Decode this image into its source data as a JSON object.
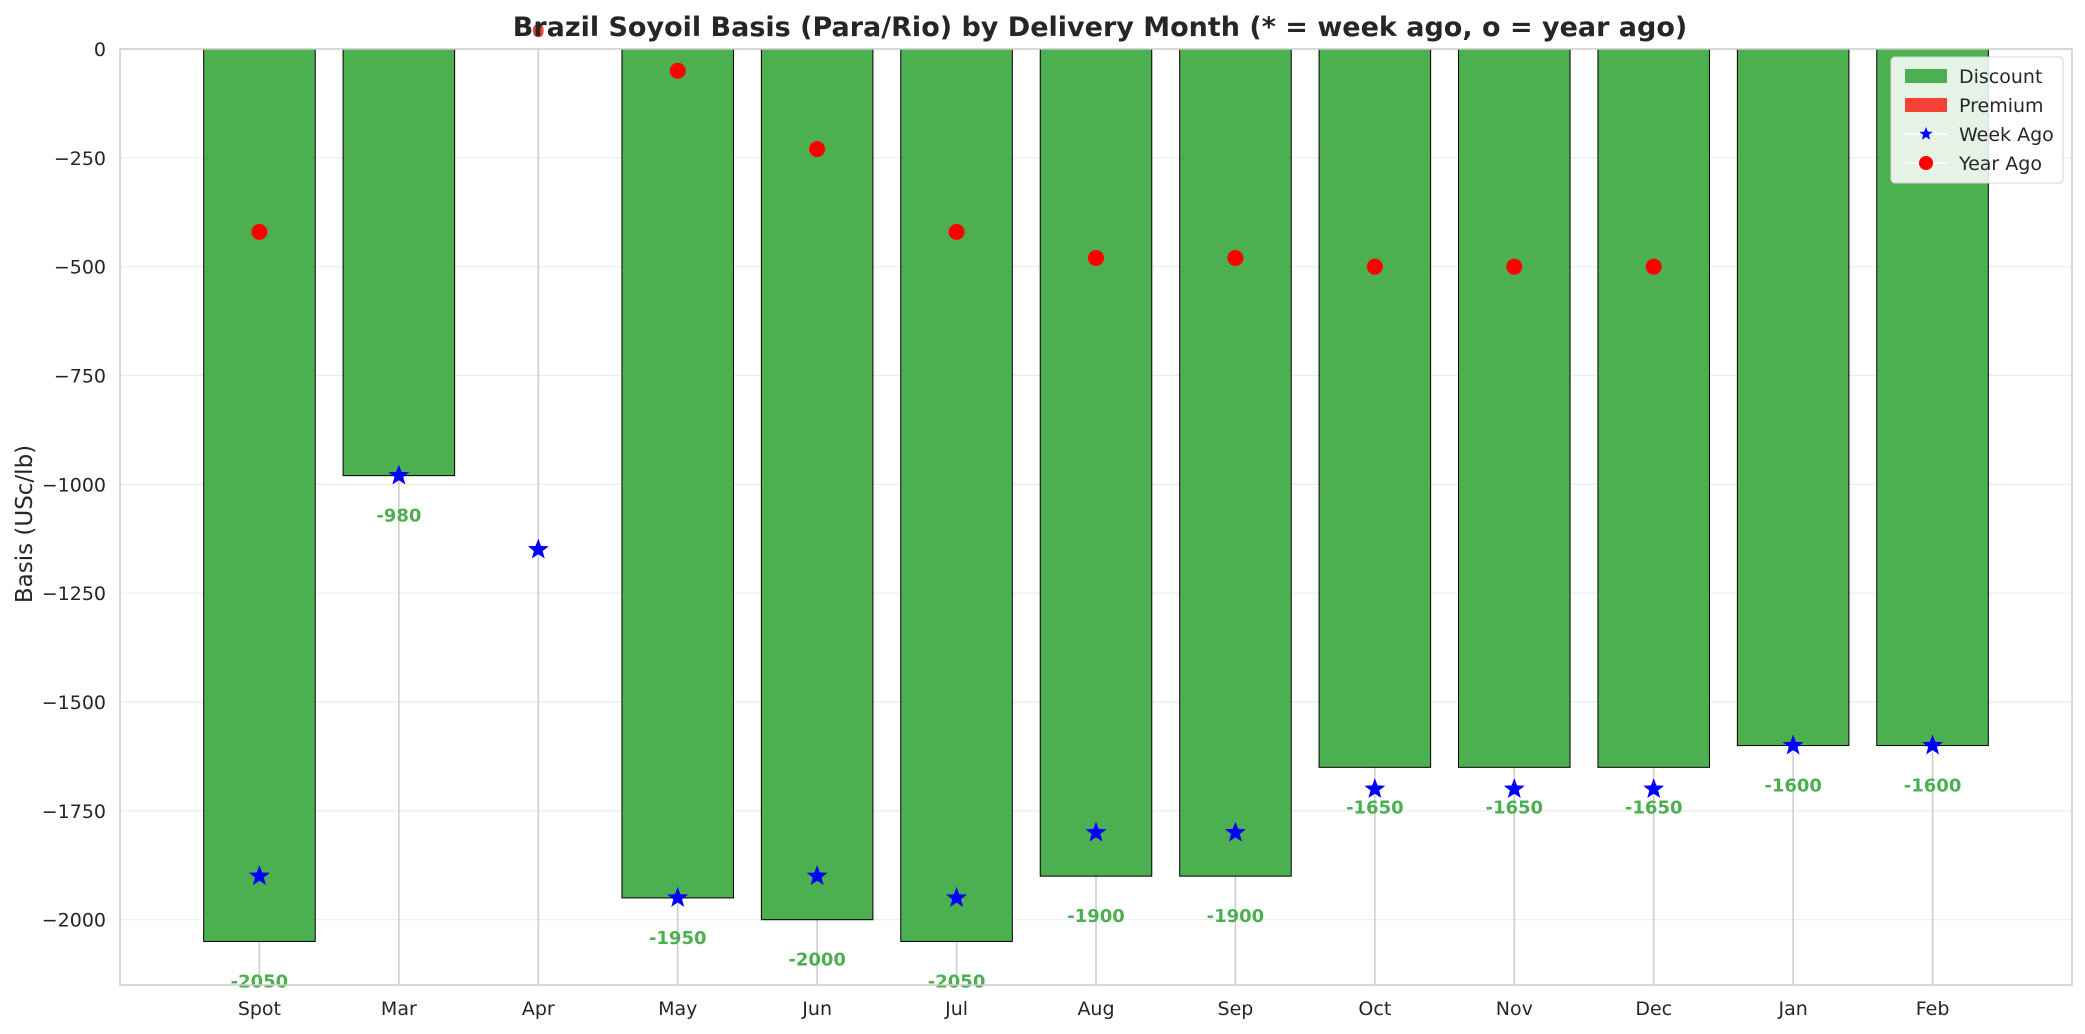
{
  "chart_data": {
    "type": "bar",
    "title": "Brazil Soyoil Basis (Para/Rio) by Delivery Month (* = week ago, o = year ago)",
    "xlabel": "",
    "ylabel": "Basis (USc/lb)",
    "categories": [
      "Spot",
      "Mar",
      "Apr",
      "May",
      "Jun",
      "Jul",
      "Aug",
      "Sep",
      "Oct",
      "Nov",
      "Dec",
      "Jan",
      "Feb"
    ],
    "series": [
      {
        "name": "Discount",
        "values": [
          -2050,
          -980,
          0,
          -1950,
          -2000,
          -2050,
          -1900,
          -1900,
          -1650,
          -1650,
          -1650,
          -1600,
          -1600
        ]
      },
      {
        "name": "Week Ago",
        "values": [
          -1900,
          -980,
          -1150,
          -1950,
          -1900,
          -1950,
          -1800,
          -1800,
          -1700,
          -1700,
          -1700,
          -1600,
          -1600
        ]
      },
      {
        "name": "Year Ago",
        "values": [
          -420,
          null,
          null,
          -50,
          -230,
          -420,
          -480,
          -480,
          -500,
          -500,
          -500,
          null,
          null
        ]
      }
    ],
    "data_labels": [
      "-2050",
      "-980",
      "0",
      "-1950",
      "-2000",
      "-2050",
      "-1900",
      "-1900",
      "-1650",
      "-1650",
      "-1650",
      "-1600",
      "-1600"
    ],
    "yticks": [
      0,
      -250,
      -500,
      -750,
      -1000,
      -1250,
      -1500,
      -1750,
      -2000
    ],
    "ytick_labels": [
      "0",
      "−250",
      "−500",
      "−750",
      "−1000",
      "−1250",
      "−1500",
      "−1750",
      "−2000"
    ],
    "ylim": [
      -2150,
      0
    ],
    "legend": {
      "position": "top-right",
      "entries": [
        "Discount",
        "Premium",
        "Week Ago",
        "Year Ago"
      ]
    },
    "colors": {
      "discount": "#4caf50",
      "premium": "#f44336",
      "week_ago": "#0000ff",
      "year_ago": "#ff0000",
      "grid": "#ebebeb",
      "axes": "#cccccc"
    },
    "grid": true
  }
}
